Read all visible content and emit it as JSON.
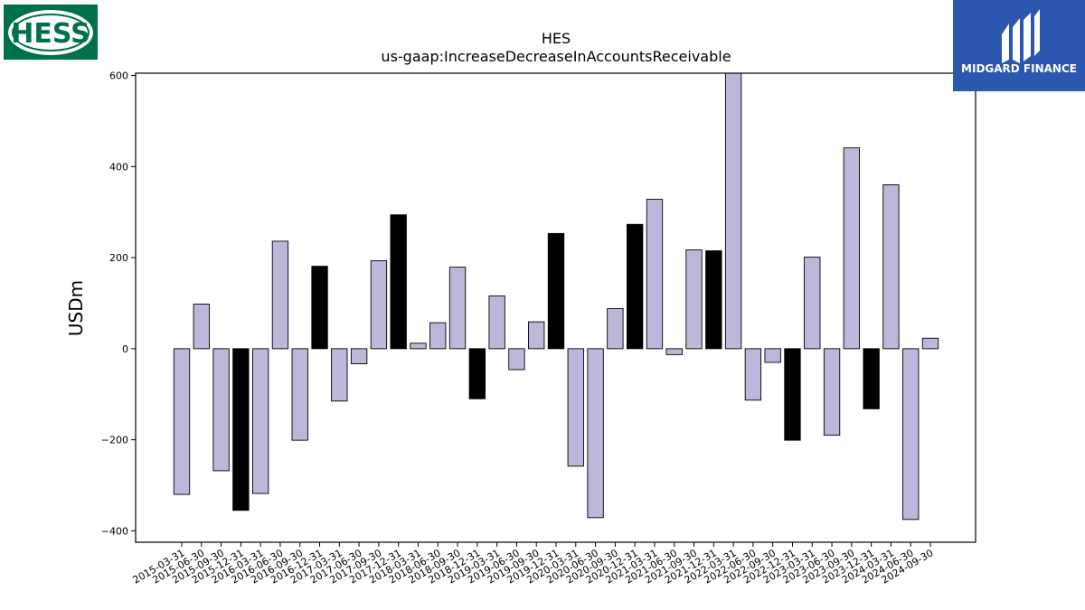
{
  "company_logo_text": "HESS",
  "brand_logo_text": "MIDGARD FINANCE",
  "colors": {
    "bar_normal": "#bcb8da",
    "bar_q4": "#000000",
    "hess_green": "#00704a",
    "midgard_blue": "#2b58ae"
  },
  "chart_data": {
    "type": "bar",
    "title": "HES",
    "subtitle": "us-gaap:IncreaseDecreaseInAccountsReceivable",
    "ylabel": "USDm",
    "xlabel": "",
    "ylim": [
      -425,
      605
    ],
    "yticks": [
      -400,
      -200,
      0,
      200,
      400,
      600
    ],
    "ytick_labels": [
      "−400",
      "−200",
      "0",
      "200",
      "400",
      "600"
    ],
    "grid": false,
    "categories": [
      "2015-03-31",
      "2015-06-30",
      "2015-09-30",
      "2015-12-31",
      "2016-03-31",
      "2016-06-30",
      "2016-09-30",
      "2016-12-31",
      "2017-03-31",
      "2017-06-30",
      "2017-09-30",
      "2017-12-31",
      "2018-03-31",
      "2018-06-30",
      "2018-09-30",
      "2018-12-31",
      "2019-03-31",
      "2019-06-30",
      "2019-09-30",
      "2019-12-31",
      "2020-03-31",
      "2020-06-30",
      "2020-09-30",
      "2020-12-31",
      "2021-03-31",
      "2021-06-30",
      "2021-09-30",
      "2021-12-31",
      "2022-03-31",
      "2022-06-30",
      "2022-09-30",
      "2022-12-31",
      "2023-03-31",
      "2023-06-30",
      "2023-09-30",
      "2023-12-31",
      "2024-03-31",
      "2024-06-30",
      "2024-09-30"
    ],
    "values": [
      -320,
      98,
      -268,
      -355,
      -318,
      236,
      -201,
      181,
      -115,
      -33,
      193,
      294,
      12,
      57,
      179,
      -110,
      116,
      -46,
      59,
      253,
      -258,
      -371,
      88,
      273,
      328,
      -13,
      217,
      215,
      612,
      -113,
      -30,
      -201,
      201,
      -190,
      441,
      -132,
      360,
      -375,
      23
    ],
    "highlight_q4": [
      false,
      false,
      false,
      true,
      false,
      false,
      false,
      true,
      false,
      false,
      false,
      true,
      false,
      false,
      false,
      true,
      false,
      false,
      false,
      true,
      false,
      false,
      false,
      true,
      false,
      false,
      false,
      true,
      false,
      false,
      false,
      true,
      false,
      false,
      false,
      true,
      false,
      false,
      false
    ]
  }
}
